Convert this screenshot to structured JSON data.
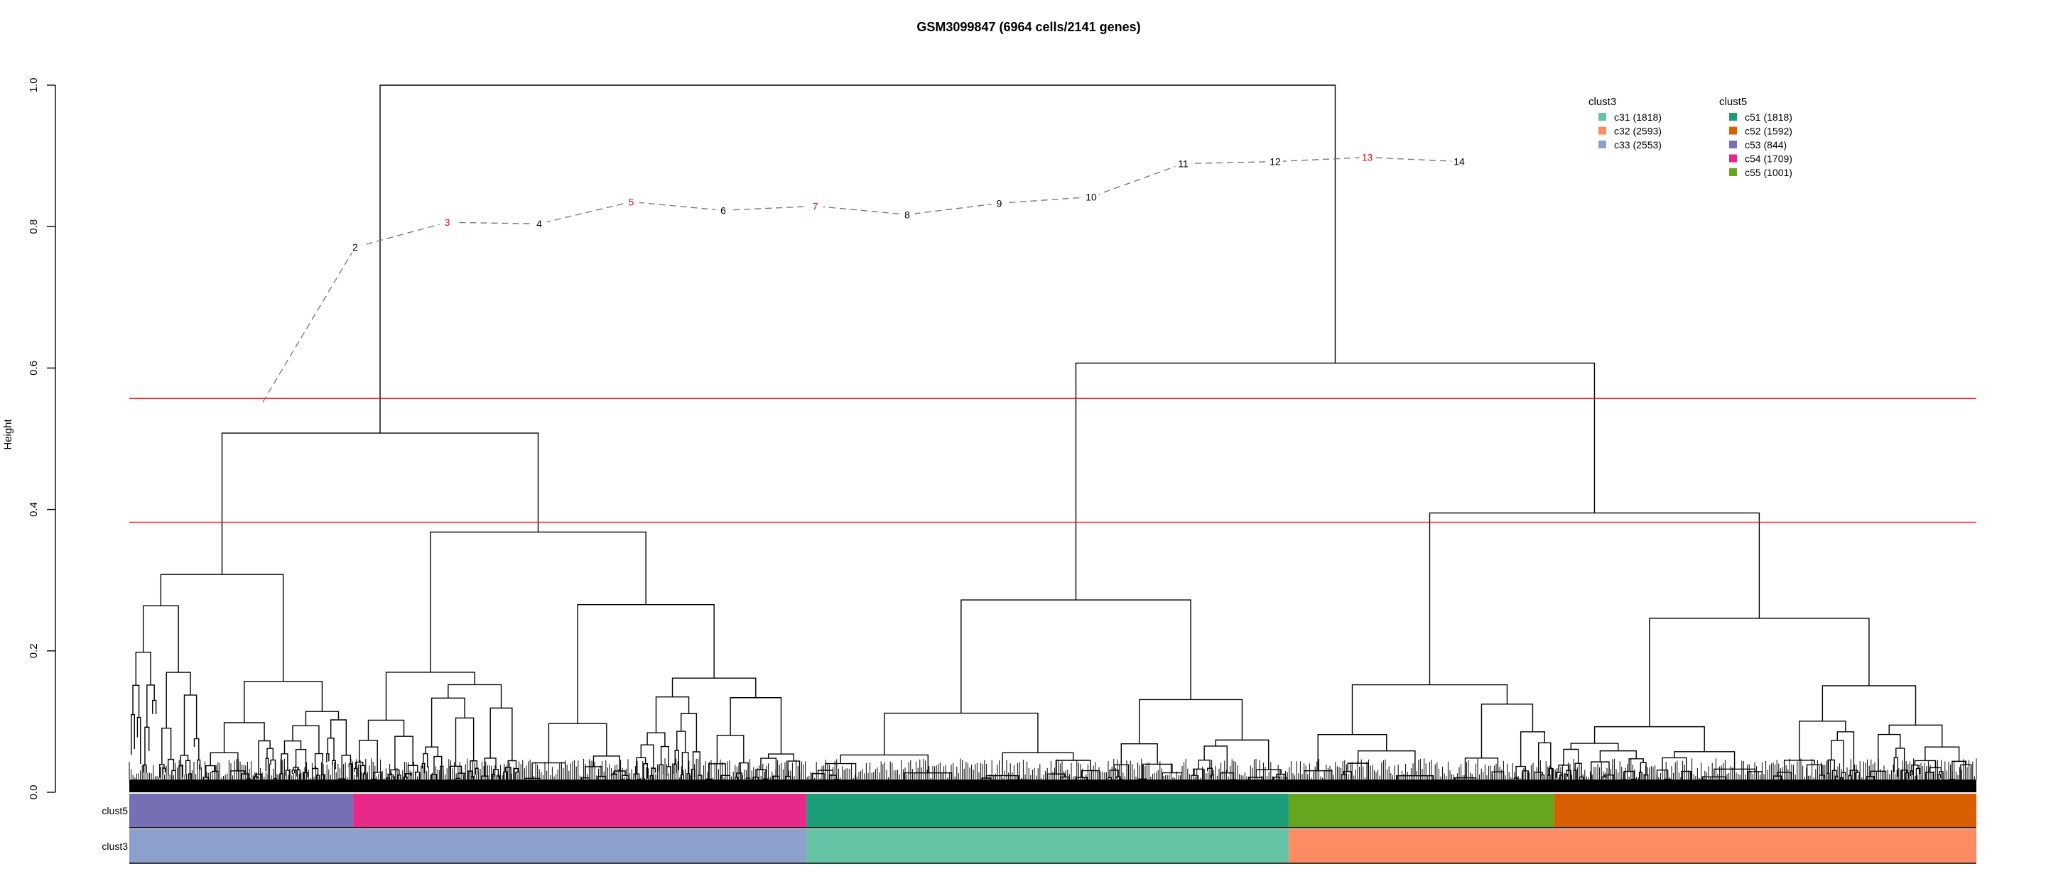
{
  "chart_data": {
    "type": "dendrogram",
    "title": "GSM3099847 (6964 cells/2141 genes)",
    "ylabel": "Height",
    "ylim": [
      0,
      1.0
    ],
    "yticks": [
      0.0,
      0.2,
      0.4,
      0.6,
      0.8,
      1.0
    ],
    "cut_heights": [
      0.557,
      0.382
    ],
    "merges": [
      {
        "from": "c53",
        "to": "c54",
        "height": 0.508
      },
      {
        "from": "c51",
        "to": "c55",
        "height": 0.607
      },
      {
        "from": "c55",
        "to": "c52",
        "height": 0.395
      },
      {
        "from": "c31+c33",
        "to": "c32",
        "height": 1.0
      }
    ],
    "k_curve": {
      "labels": [
        "2",
        "3",
        "4",
        "5",
        "6",
        "7",
        "8",
        "9",
        "10",
        "11",
        "12",
        "13",
        "14"
      ],
      "values": [
        0.771,
        0.806,
        0.804,
        0.835,
        0.823,
        0.829,
        0.817,
        0.833,
        0.842,
        0.889,
        0.892,
        0.898,
        0.892
      ],
      "start_value": 0.552,
      "highlighted": [
        "3",
        "5",
        "7",
        "13"
      ]
    },
    "tracks": [
      {
        "name": "clust5",
        "segments": [
          {
            "label": "c53 (844)",
            "count": 844,
            "color": "#7570B3"
          },
          {
            "label": "c54 (1709)",
            "count": 1709,
            "color": "#E7298A"
          },
          {
            "label": "c51 (1818)",
            "count": 1818,
            "color": "#1B9E77"
          },
          {
            "label": "c55 (1001)",
            "count": 1001,
            "color": "#66A61E"
          },
          {
            "label": "c52 (1592)",
            "count": 1592,
            "color": "#D95F02"
          }
        ]
      },
      {
        "name": "clust3",
        "segments": [
          {
            "label": "c33 (2553)",
            "count": 2553,
            "color": "#8DA0CB"
          },
          {
            "label": "c31 (1818)",
            "count": 1818,
            "color": "#66C2A5"
          },
          {
            "label": "c32 (2593)",
            "count": 2593,
            "color": "#FC8D62"
          }
        ]
      }
    ],
    "legends": [
      {
        "title": "clust3",
        "items": [
          {
            "label": "c31 (1818)",
            "color": "#66C2A5"
          },
          {
            "label": "c32 (2593)",
            "color": "#FC8D62"
          },
          {
            "label": "c33 (2553)",
            "color": "#8DA0CB"
          }
        ]
      },
      {
        "title": "clust5",
        "items": [
          {
            "label": "c51 (1818)",
            "color": "#1B9E77"
          },
          {
            "label": "c52 (1592)",
            "color": "#D95F02"
          },
          {
            "label": "c53 (844)",
            "color": "#7570B3"
          },
          {
            "label": "c54 (1709)",
            "color": "#E7298A"
          },
          {
            "label": "c55 (1001)",
            "color": "#66A61E"
          }
        ]
      }
    ],
    "colors": {
      "cut_line": "#FF0000",
      "highlight": "#FF0000",
      "curve": "#7a7a7a",
      "tree": "#000000"
    }
  }
}
